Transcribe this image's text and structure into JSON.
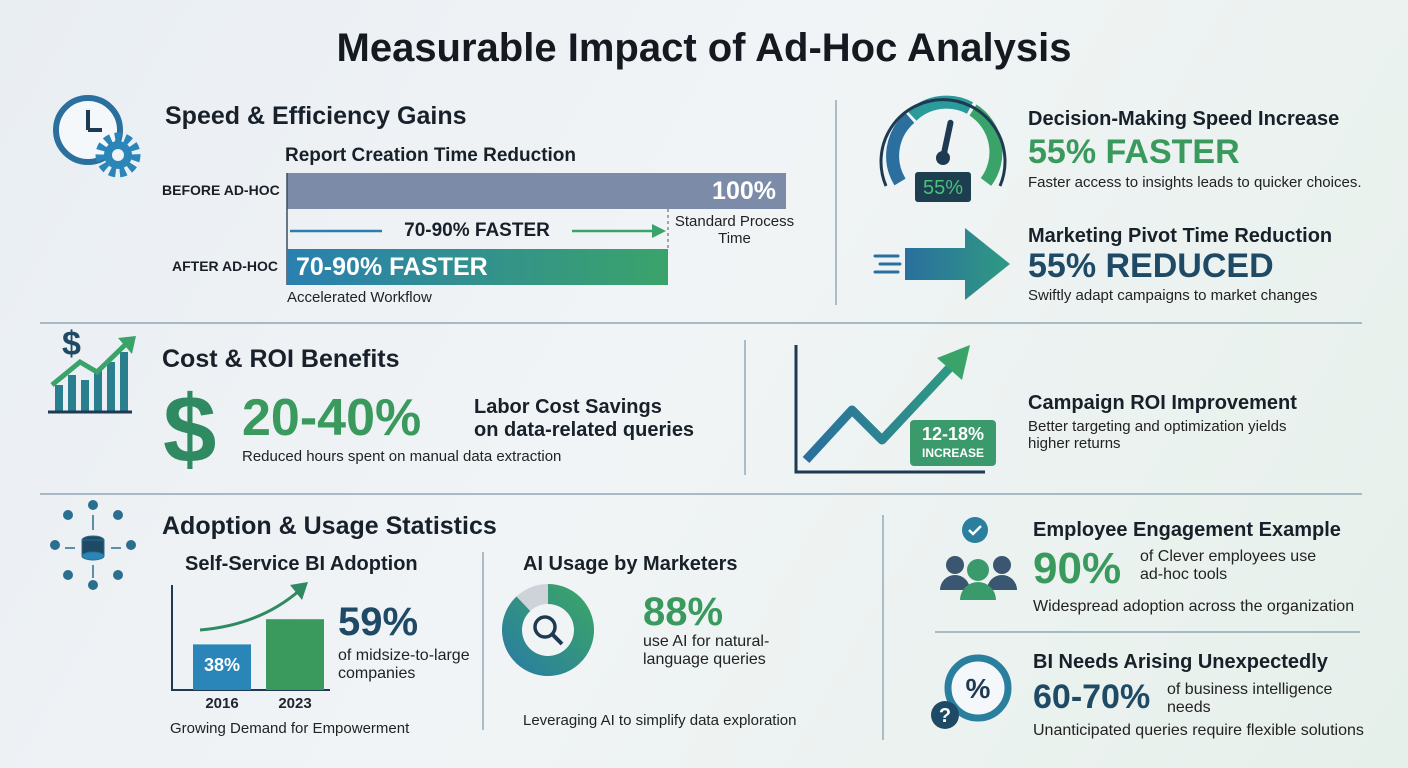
{
  "title": "Measurable Impact of Ad-Hoc Analysis",
  "speed": {
    "heading": "Speed & Efficiency Gains",
    "chart_title": "Report Creation Time Reduction",
    "before_label": "BEFORE AD-HOC",
    "before_value": {
      "value": 100,
      "label": "100%"
    },
    "before_note": "Standard Process Time",
    "arrow_label": "70-90% FASTER",
    "after_label": "AFTER AD-HOC",
    "after_value": "70-90% FASTER",
    "after_note": "Accelerated Workflow"
  },
  "decision": {
    "heading": "Decision-Making Speed Increase",
    "gauge": {
      "value": 55,
      "label": "55%"
    },
    "stat": "55% FASTER",
    "description": "Faster access to insights leads to quicker choices."
  },
  "pivot": {
    "heading": "Marketing Pivot Time Reduction",
    "stat": "55% REDUCED",
    "description": "Swiftly adapt campaigns to market changes"
  },
  "cost": {
    "heading": "Cost & ROI Benefits",
    "stat": "20-40%",
    "stat_label": "Labor Cost Savings",
    "stat_sublabel": "on data-related queries",
    "description": "Reduced hours spent on manual data extraction"
  },
  "roi": {
    "badge_value": "12-18%",
    "badge_label": "INCREASE",
    "heading": "Campaign ROI Improvement",
    "description": "Better targeting and optimization yields higher returns"
  },
  "adoption": {
    "heading": "Adoption & Usage Statistics",
    "bi": {
      "title": "Self-Service BI Adoption",
      "categories": [
        "2016",
        "2023"
      ],
      "values": [
        38,
        59
      ],
      "value_labels": [
        "38%",
        "59%"
      ],
      "stat_description": "of midsize-to-large companies",
      "caption": "Growing Demand for Empowerment"
    },
    "ai": {
      "title": "AI Usage by Marketers",
      "value": 88,
      "value_label": "88%",
      "description": "use AI for natural-language queries",
      "caption": "Leveraging AI to simplify data exploration"
    }
  },
  "employee": {
    "heading": "Employee Engagement Example",
    "stat": "90%",
    "stat_description": "of Clever employees use ad-hoc tools",
    "description": "Widespread adoption across the organization"
  },
  "bi_needs": {
    "heading": "BI Needs Arising Unexpectedly",
    "stat": "60-70%",
    "stat_description": "of business intelligence needs",
    "description": "Unanticipated queries require flexible solutions"
  }
}
